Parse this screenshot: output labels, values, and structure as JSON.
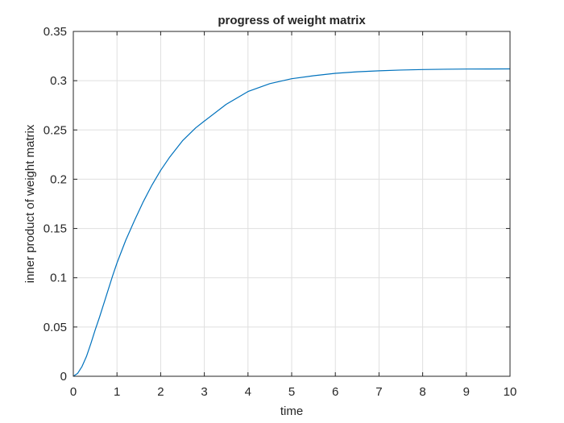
{
  "chart_data": {
    "type": "line",
    "title": "progress of weight matrix",
    "xlabel": "time",
    "ylabel": "inner product of weight matrix",
    "xlim": [
      0,
      10
    ],
    "ylim": [
      0,
      0.35
    ],
    "xticks": [
      0,
      1,
      2,
      3,
      4,
      5,
      6,
      7,
      8,
      9,
      10
    ],
    "xtick_labels": [
      "0",
      "1",
      "2",
      "3",
      "4",
      "5",
      "6",
      "7",
      "8",
      "9",
      "10"
    ],
    "yticks": [
      0,
      0.05,
      0.1,
      0.15,
      0.2,
      0.25,
      0.3,
      0.35
    ],
    "ytick_labels": [
      "0",
      "0.05",
      "0.1",
      "0.15",
      "0.2",
      "0.25",
      "0.3",
      "0.35"
    ],
    "grid": true,
    "series": [
      {
        "color": "#0072bd",
        "x": [
          0,
          0.1,
          0.2,
          0.3,
          0.4,
          0.5,
          0.6,
          0.7,
          0.8,
          0.9,
          1.0,
          1.2,
          1.4,
          1.6,
          1.8,
          2.0,
          2.2,
          2.5,
          2.8,
          3.0,
          3.5,
          4.0,
          4.5,
          5.0,
          5.5,
          6.0,
          6.5,
          7.0,
          7.5,
          8.0,
          8.5,
          9.0,
          9.5,
          10.0
        ],
        "y": [
          0,
          0.003,
          0.01,
          0.02,
          0.033,
          0.047,
          0.06,
          0.074,
          0.088,
          0.102,
          0.115,
          0.138,
          0.158,
          0.177,
          0.194,
          0.209,
          0.222,
          0.239,
          0.252,
          0.259,
          0.276,
          0.289,
          0.297,
          0.302,
          0.305,
          0.3075,
          0.309,
          0.31,
          0.3108,
          0.3113,
          0.3116,
          0.3118,
          0.3119,
          0.312
        ]
      }
    ]
  }
}
